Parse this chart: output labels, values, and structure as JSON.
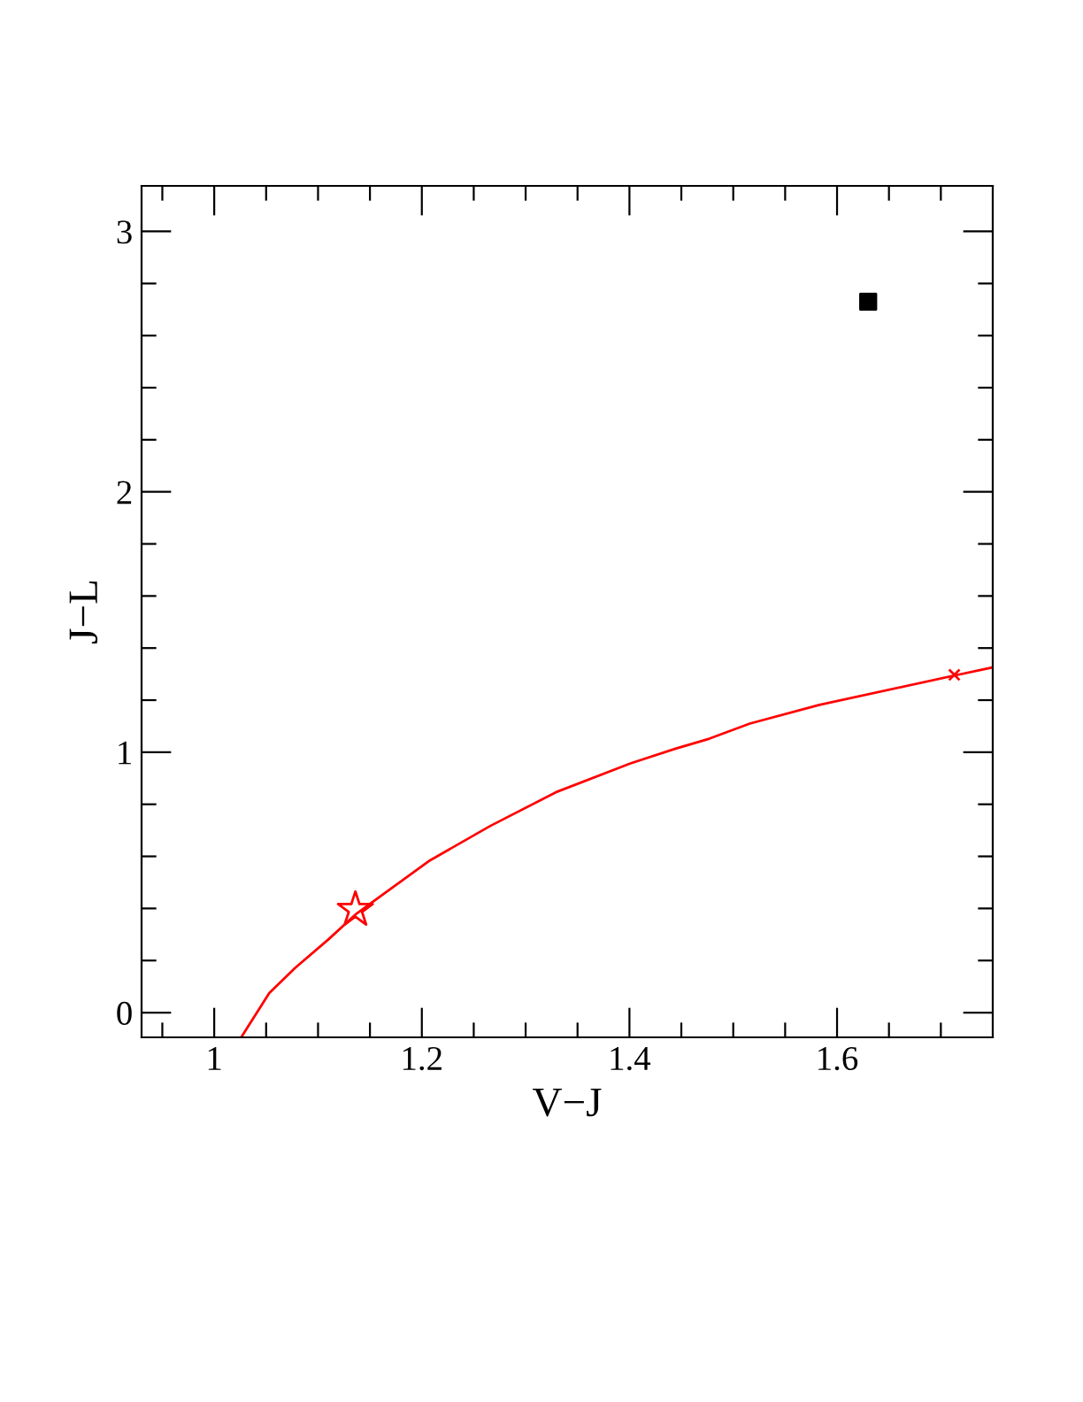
{
  "chart_data": {
    "type": "line",
    "xlabel": "V−J",
    "ylabel": "J−L",
    "xlim": [
      0.93,
      1.75
    ],
    "ylim": [
      -0.095,
      3.175
    ],
    "xticks": [
      {
        "value": 0.95,
        "label": null
      },
      1,
      {
        "value": 1.05,
        "label": null
      },
      {
        "value": 1.1,
        "label": null
      },
      {
        "value": 1.15,
        "label": null
      },
      1.2,
      {
        "value": 1.25,
        "label": null
      },
      {
        "value": 1.3,
        "label": null
      },
      {
        "value": 1.35,
        "label": null
      },
      1.4,
      {
        "value": 1.45,
        "label": null
      },
      {
        "value": 1.5,
        "label": null
      },
      {
        "value": 1.55,
        "label": null
      },
      1.6,
      {
        "value": 1.65,
        "label": null
      },
      {
        "value": 1.7,
        "label": null
      }
    ],
    "yticks": [
      0,
      {
        "value": 0.2,
        "label": null
      },
      {
        "value": 0.4,
        "label": null
      },
      {
        "value": 0.6,
        "label": null
      },
      {
        "value": 0.8,
        "label": null
      },
      1,
      {
        "value": 1.2,
        "label": null
      },
      {
        "value": 1.4,
        "label": null
      },
      {
        "value": 1.6,
        "label": null
      },
      {
        "value": 1.8,
        "label": null
      },
      2,
      {
        "value": 2.2,
        "label": null
      },
      {
        "value": 2.4,
        "label": null
      },
      {
        "value": 2.6,
        "label": null
      },
      {
        "value": 2.8,
        "label": null
      },
      3
    ],
    "grid": false,
    "legend": false,
    "series": [
      {
        "color": "#ff0000",
        "marker": "none",
        "line_style": "solid",
        "x": [
          1.026,
          1.053,
          1.078,
          1.11,
          1.137,
          1.208,
          1.266,
          1.329,
          1.401,
          1.443,
          1.477,
          1.516,
          1.583,
          1.716,
          1.75
        ],
        "values": [
          -0.095,
          0.075,
          0.172,
          0.281,
          0.38,
          0.585,
          0.717,
          0.846,
          0.957,
          1.012,
          1.052,
          1.11,
          1.182,
          1.297,
          1.326
        ]
      },
      {
        "type": "scatter",
        "color": "#ff0000",
        "marker": "star",
        "x": [
          1.136
        ],
        "values": [
          0.395
        ]
      },
      {
        "type": "scatter",
        "color": "#ff0000",
        "marker": "cross",
        "x": [
          1.713
        ],
        "values": [
          1.297
        ]
      },
      {
        "type": "scatter",
        "color": "#000000",
        "marker": "square",
        "x": [
          1.63
        ],
        "values": [
          2.73
        ]
      }
    ]
  }
}
